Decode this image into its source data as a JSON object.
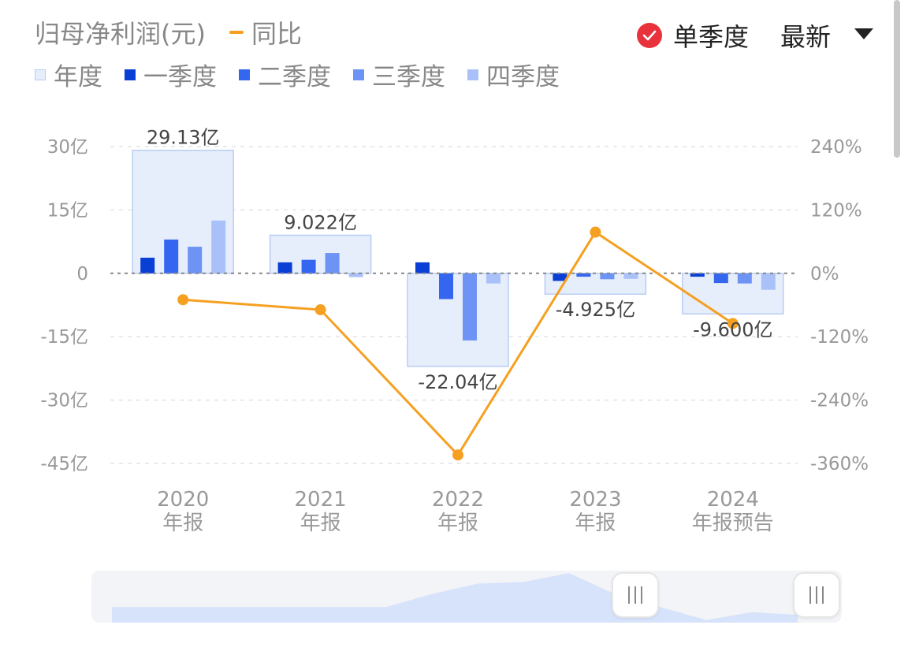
{
  "header": {
    "title": "归母净利润(元)",
    "yoy_label": "同比",
    "toggle_label": "单季度",
    "select_value": "最新",
    "legend": [
      {
        "label": "年度",
        "color": "#e6eefc",
        "border": "#b9cdf4"
      },
      {
        "label": "一季度",
        "color": "#0a3fd6",
        "border": "#0a3fd6"
      },
      {
        "label": "二季度",
        "color": "#3466f0",
        "border": "#3466f0"
      },
      {
        "label": "三季度",
        "color": "#6d93f4",
        "border": "#6d93f4"
      },
      {
        "label": "四季度",
        "color": "#a9c0f8",
        "border": "#a9c0f8"
      }
    ]
  },
  "chart_data": {
    "type": "bar",
    "categories": [
      [
        "2020",
        "年报"
      ],
      [
        "2021",
        "年报"
      ],
      [
        "2022",
        "年报"
      ],
      [
        "2023",
        "年报"
      ],
      [
        "2024",
        "年报预告"
      ]
    ],
    "annual": [
      29.13,
      9.022,
      -22.04,
      -4.925,
      -9.6
    ],
    "annual_labels": [
      "29.13亿",
      "9.022亿",
      "-22.04亿",
      "-4.925亿",
      "-9.600亿"
    ],
    "quarters": [
      {
        "name": "一季度",
        "color": "#0a3fd6",
        "values": [
          3.7,
          2.6,
          2.6,
          -1.8,
          -0.8
        ]
      },
      {
        "name": "二季度",
        "color": "#3466f0",
        "values": [
          8.0,
          3.2,
          -6.1,
          -0.8,
          -2.3
        ]
      },
      {
        "name": "三季度",
        "color": "#6d93f4",
        "values": [
          6.3,
          4.8,
          -15.9,
          -1.4,
          -2.4
        ]
      },
      {
        "name": "四季度",
        "color": "#a9c0f8",
        "values": [
          12.5,
          -0.9,
          -2.4,
          -1.3,
          -3.9
        ]
      }
    ],
    "yoy": {
      "name": "同比",
      "color": "#f5a021",
      "values": [
        -50,
        -69,
        -344,
        78,
        -95
      ]
    },
    "left_axis": {
      "ticks": [
        "30亿",
        "15亿",
        "0",
        "-15亿",
        "-30亿",
        "-45亿"
      ],
      "min": -45,
      "max": 30
    },
    "right_axis": {
      "ticks": [
        "240%",
        "120%",
        "0%",
        "-120%",
        "-240%",
        "-360%"
      ],
      "min": -360,
      "max": 240
    },
    "annual_color": "#e6eefc",
    "annual_border": "#b9cdf4",
    "grid": true
  },
  "slider": {
    "overview": [
      0.3,
      0.3,
      0.3,
      0.3,
      0.3,
      0.3,
      0.3,
      0.55,
      0.75,
      0.78,
      0.95,
      0.55,
      0.3,
      0.05,
      0.2,
      0.15
    ]
  }
}
